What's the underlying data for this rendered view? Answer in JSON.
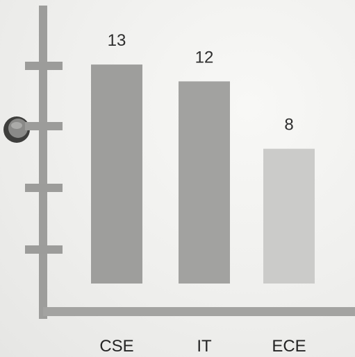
{
  "chart_data": {
    "type": "bar",
    "categories": [
      "CSE",
      "IT",
      "ECE"
    ],
    "values": [
      13,
      12,
      8
    ],
    "ylim": [
      0,
      16
    ],
    "grid": false,
    "legend": "none",
    "title": "",
    "xlabel": "",
    "ylabel": ""
  },
  "colors": {
    "axis": "#9d9d9b",
    "bars": [
      "#9e9e9c",
      "#a2a2a0",
      "#cbcbc9"
    ],
    "hole": "#5a5a58"
  }
}
